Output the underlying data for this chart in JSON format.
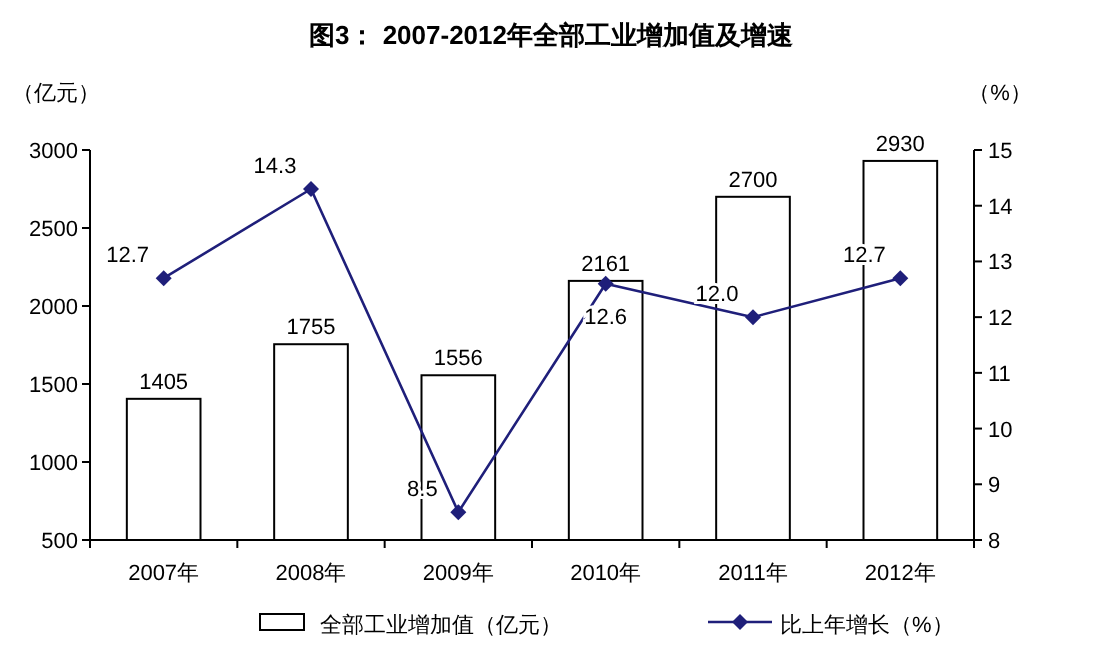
{
  "chart_data": {
    "type": "bar",
    "title": "图3： 2007-2012年全部工业增加值及增速",
    "ylabel": "（亿元）",
    "y2label": "（%）",
    "categories": [
      "2007年",
      "2008年",
      "2009年",
      "2010年",
      "2011年",
      "2012年"
    ],
    "series": [
      {
        "name": "全部工业增加值（亿元）",
        "color": "#ffffff",
        "values": [
          1405,
          1755,
          1556,
          2161,
          2700,
          2930
        ],
        "value_labels": [
          "1405",
          "1755",
          "1556",
          "2161",
          "2700",
          "2930"
        ]
      },
      {
        "name": "比上年增长（%）",
        "type": "line",
        "axis": "y2",
        "color": "#1f1f7a",
        "marker": "diamond",
        "values": [
          12.7,
          14.3,
          8.5,
          12.6,
          12.0,
          12.7
        ],
        "value_labels": [
          "12.7",
          "14.3",
          "8.5",
          "12.6",
          "12.0",
          "12.7"
        ]
      }
    ],
    "ylim": [
      500,
      3000
    ],
    "yticks": [
      500,
      1000,
      1500,
      2000,
      2500,
      3000
    ],
    "y2lim": [
      8,
      15
    ],
    "y2ticks": [
      8,
      9,
      10,
      11,
      12,
      13,
      14,
      15
    ],
    "grid": false,
    "legend": "bottom"
  }
}
